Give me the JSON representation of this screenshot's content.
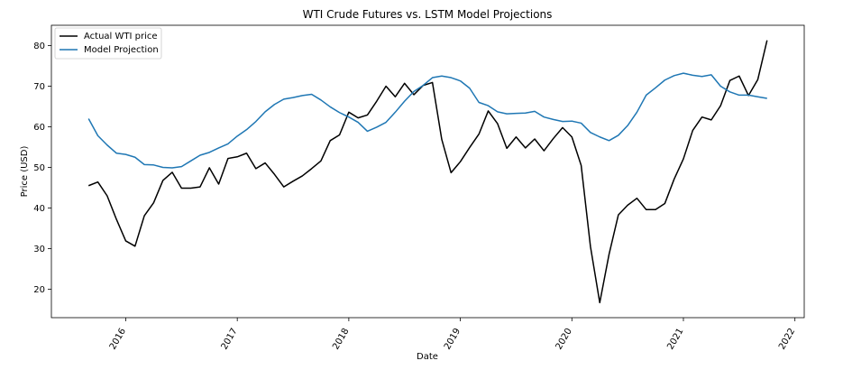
{
  "chart_data": {
    "type": "line",
    "title": "WTI Crude Futures vs. LSTM Model Projections",
    "xlabel": "Date",
    "ylabel": "Price (USD)",
    "xlim": [
      "2015-05-01",
      "2022-02-01"
    ],
    "ylim": [
      13,
      85
    ],
    "x_ticks": [
      "2016",
      "2017",
      "2018",
      "2019",
      "2020",
      "2021",
      "2022"
    ],
    "y_ticks": [
      20,
      30,
      40,
      50,
      60,
      70,
      80
    ],
    "grid": false,
    "legend": "top-left",
    "x": [
      "2015-09",
      "2015-10",
      "2015-11",
      "2015-12",
      "2016-01",
      "2016-02",
      "2016-03",
      "2016-04",
      "2016-05",
      "2016-06",
      "2016-07",
      "2016-08",
      "2016-09",
      "2016-10",
      "2016-11",
      "2016-12",
      "2017-01",
      "2017-02",
      "2017-03",
      "2017-04",
      "2017-05",
      "2017-06",
      "2017-07",
      "2017-08",
      "2017-09",
      "2017-10",
      "2017-11",
      "2017-12",
      "2018-01",
      "2018-02",
      "2018-03",
      "2018-04",
      "2018-05",
      "2018-06",
      "2018-07",
      "2018-08",
      "2018-09",
      "2018-10",
      "2018-11",
      "2018-12",
      "2019-01",
      "2019-02",
      "2019-03",
      "2019-04",
      "2019-05",
      "2019-06",
      "2019-07",
      "2019-08",
      "2019-09",
      "2019-10",
      "2019-11",
      "2019-12",
      "2020-01",
      "2020-02",
      "2020-03",
      "2020-04",
      "2020-05",
      "2020-06",
      "2020-07",
      "2020-08",
      "2020-09",
      "2020-10",
      "2020-11",
      "2020-12",
      "2021-01",
      "2021-02",
      "2021-03",
      "2021-04",
      "2021-05",
      "2021-06",
      "2021-07",
      "2021-08",
      "2021-09",
      "2021-10"
    ],
    "series": [
      {
        "name": "Actual WTI price",
        "color": "#000000",
        "values": [
          45.5,
          46.4,
          43.0,
          37.2,
          31.9,
          30.6,
          38.1,
          41.3,
          46.8,
          48.8,
          44.9,
          44.9,
          45.2,
          49.9,
          45.9,
          52.2,
          52.6,
          53.5,
          49.7,
          51.1,
          48.3,
          45.2,
          46.6,
          47.9,
          49.7,
          51.6,
          56.6,
          58.0,
          63.6,
          62.2,
          62.9,
          66.3,
          70.0,
          67.4,
          70.7,
          67.9,
          70.2,
          70.9,
          56.9,
          48.7,
          51.4,
          54.9,
          58.2,
          63.9,
          60.8,
          54.7,
          57.5,
          54.8,
          57.0,
          54.1,
          57.1,
          59.8,
          57.5,
          50.5,
          30.5,
          16.7,
          28.6,
          38.3,
          40.7,
          42.4,
          39.6,
          39.6,
          41.1,
          47.1,
          52.1,
          59.1,
          62.4,
          61.7,
          65.2,
          71.4,
          72.5,
          67.7,
          71.6,
          81.3
        ]
      },
      {
        "name": "Model Projection",
        "color": "#1f77b4",
        "values": [
          62.0,
          57.8,
          55.5,
          53.5,
          53.2,
          52.5,
          50.7,
          50.6,
          50.0,
          49.9,
          50.2,
          51.6,
          53.0,
          53.7,
          54.8,
          55.8,
          57.7,
          59.3,
          61.3,
          63.7,
          65.5,
          66.8,
          67.2,
          67.7,
          68.0,
          66.6,
          64.9,
          63.5,
          62.4,
          61.1,
          58.9,
          59.9,
          61.1,
          63.6,
          66.3,
          68.7,
          70.2,
          72.1,
          72.5,
          72.1,
          71.3,
          69.5,
          66.0,
          65.2,
          63.7,
          63.2,
          63.3,
          63.4,
          63.8,
          62.4,
          61.8,
          61.3,
          61.4,
          60.9,
          58.6,
          57.5,
          56.6,
          57.9,
          60.3,
          63.6,
          67.8,
          69.6,
          71.5,
          72.6,
          73.2,
          72.7,
          72.4,
          72.8,
          70.0,
          68.6,
          67.8,
          67.8,
          67.4,
          67.0
        ]
      }
    ]
  }
}
